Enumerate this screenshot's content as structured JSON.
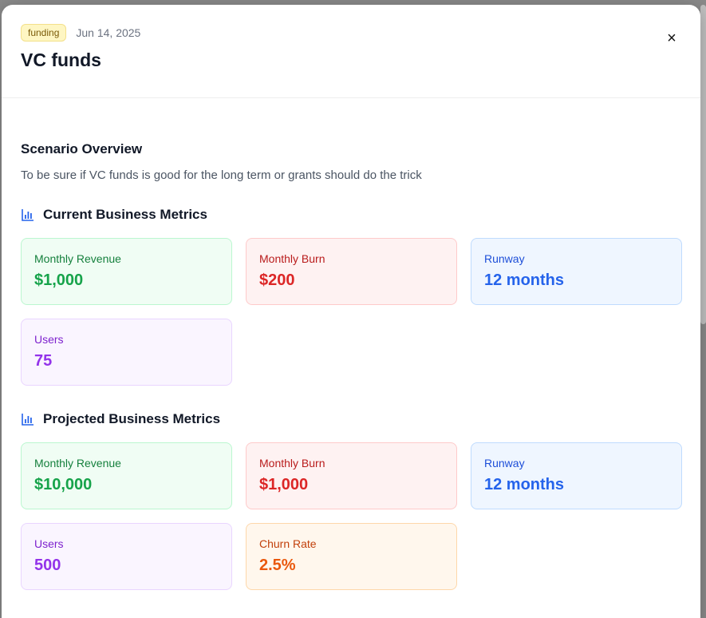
{
  "header": {
    "badge": "funding",
    "date": "Jun 14, 2025",
    "title": "VC funds",
    "close_label": "×"
  },
  "overview": {
    "heading": "Scenario Overview",
    "description": "To be sure if VC funds is good for the long term or grants should do the trick"
  },
  "current": {
    "heading": "Current Business Metrics",
    "icon": "bar-chart-icon",
    "metrics": [
      {
        "label": "Monthly Revenue",
        "value": "$1,000"
      },
      {
        "label": "Monthly Burn",
        "value": "$200"
      },
      {
        "label": "Runway",
        "value": "12 months"
      },
      {
        "label": "Users",
        "value": "75"
      }
    ]
  },
  "projected": {
    "heading": "Projected Business Metrics",
    "icon": "bar-chart-icon",
    "metrics": [
      {
        "label": "Monthly Revenue",
        "value": "$10,000"
      },
      {
        "label": "Monthly Burn",
        "value": "$1,000"
      },
      {
        "label": "Runway",
        "value": "12 months"
      },
      {
        "label": "Users",
        "value": "500"
      },
      {
        "label": "Churn Rate",
        "value": "2.5%"
      }
    ]
  },
  "colors": {
    "revenue": "#16a34a",
    "burn": "#dc2626",
    "runway": "#2563eb",
    "users": "#9333ea",
    "churn": "#ea580c",
    "icon": "#2563eb"
  }
}
